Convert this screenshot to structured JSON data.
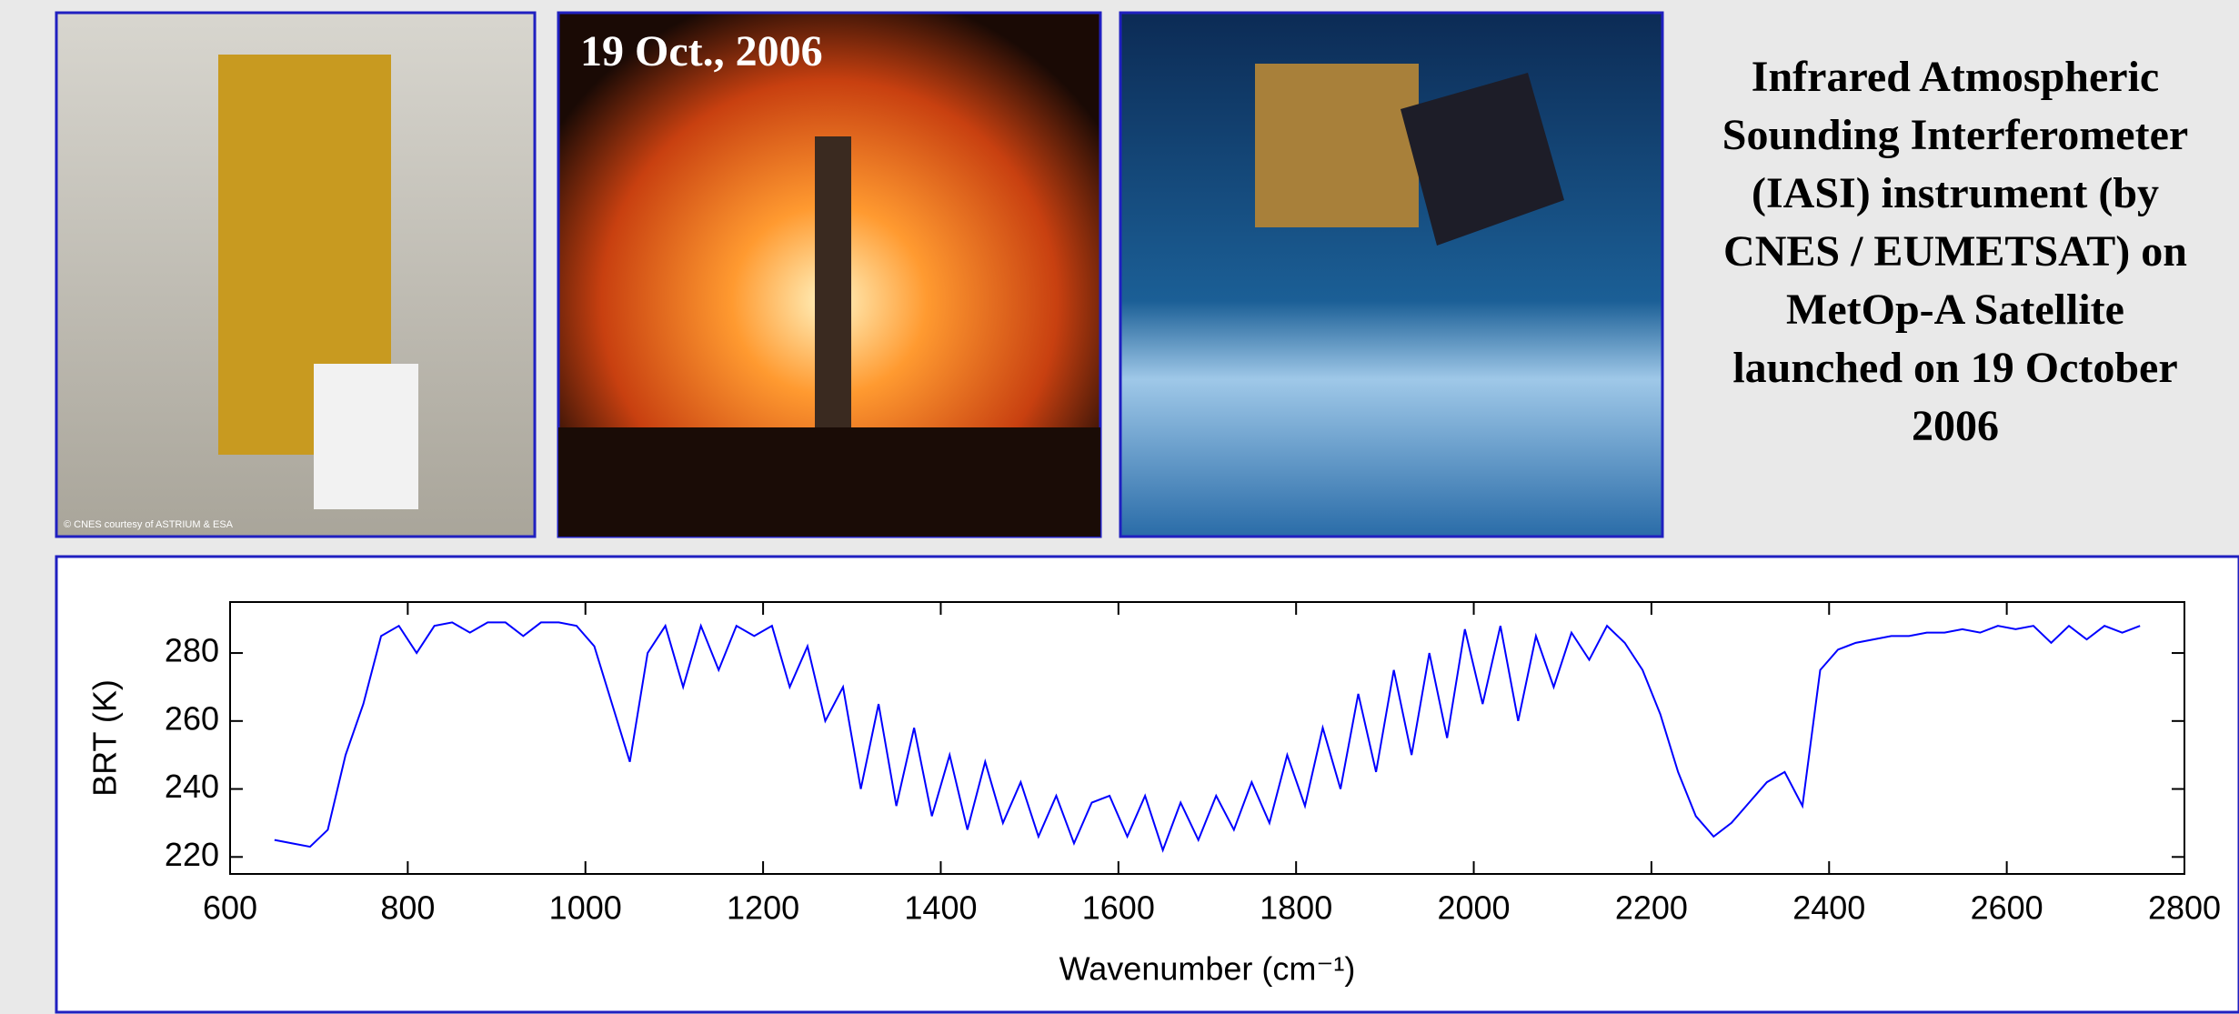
{
  "photo_date": "19 Oct., 2006",
  "photo_credit": "© CNES courtesy of ASTRIUM & ESA",
  "caption_lines": [
    "Infrared Atmospheric",
    "Sounding Interferometer",
    "(IASI) instrument (by",
    "CNES / EUMETSAT) on",
    "MetOp-A Satellite",
    "launched on 19 October",
    "2006"
  ],
  "chart_data": {
    "type": "line",
    "x_label": "Wavenumber (cm⁻¹)",
    "y_label": "BRT (K)",
    "color": "#0000ff",
    "x": [
      650,
      670,
      690,
      710,
      730,
      750,
      770,
      790,
      810,
      830,
      850,
      870,
      890,
      910,
      930,
      950,
      970,
      990,
      1010,
      1030,
      1050,
      1070,
      1090,
      1110,
      1130,
      1150,
      1170,
      1190,
      1210,
      1230,
      1250,
      1270,
      1290,
      1310,
      1330,
      1350,
      1370,
      1390,
      1410,
      1430,
      1450,
      1470,
      1490,
      1510,
      1530,
      1550,
      1570,
      1590,
      1610,
      1630,
      1650,
      1670,
      1690,
      1710,
      1730,
      1750,
      1770,
      1790,
      1810,
      1830,
      1850,
      1870,
      1890,
      1910,
      1930,
      1950,
      1970,
      1990,
      2010,
      2030,
      2050,
      2070,
      2090,
      2110,
      2130,
      2150,
      2170,
      2190,
      2210,
      2230,
      2250,
      2270,
      2290,
      2310,
      2330,
      2350,
      2370,
      2390,
      2410,
      2430,
      2450,
      2470,
      2490,
      2510,
      2530,
      2550,
      2570,
      2590,
      2610,
      2630,
      2650,
      2670,
      2690,
      2710,
      2730,
      2750
    ],
    "values": [
      225,
      224,
      223,
      228,
      250,
      265,
      285,
      288,
      280,
      288,
      289,
      286,
      289,
      289,
      285,
      289,
      289,
      288,
      282,
      265,
      248,
      280,
      288,
      270,
      288,
      275,
      288,
      285,
      288,
      270,
      282,
      260,
      270,
      240,
      265,
      235,
      258,
      232,
      250,
      228,
      248,
      230,
      242,
      226,
      238,
      224,
      236,
      238,
      226,
      238,
      222,
      236,
      225,
      238,
      228,
      242,
      230,
      250,
      235,
      258,
      240,
      268,
      245,
      275,
      250,
      280,
      255,
      287,
      265,
      288,
      260,
      285,
      270,
      286,
      278,
      288,
      283,
      275,
      262,
      245,
      232,
      226,
      230,
      236,
      242,
      245,
      235,
      275,
      281,
      283,
      284,
      285,
      285,
      286,
      286,
      287,
      286,
      288,
      287,
      288,
      283,
      288,
      284,
      288,
      286,
      288
    ],
    "xlim": [
      600,
      2800
    ],
    "xticks": [
      600,
      800,
      1000,
      1200,
      1400,
      1600,
      1800,
      2000,
      2200,
      2400,
      2600,
      2800
    ],
    "ylim": [
      215,
      295
    ],
    "yticks": [
      220,
      240,
      260,
      280
    ]
  }
}
